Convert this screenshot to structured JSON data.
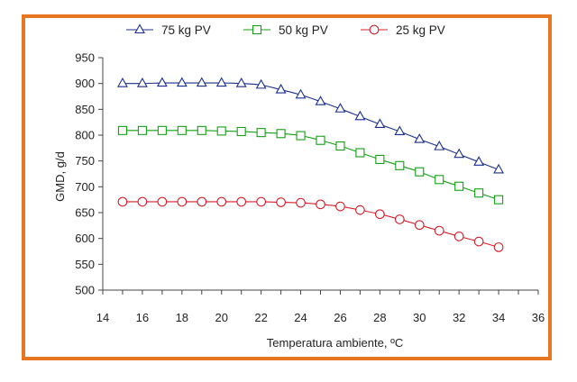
{
  "colors": {
    "frame": "#e87722",
    "series": [
      "#1a2f8f",
      "#14a014",
      "#d81e2a"
    ]
  },
  "chart_data": {
    "type": "line",
    "xlabel": "Temperatura ambiente, ºC",
    "ylabel": "GMD, g/d",
    "xlim": [
      14,
      36
    ],
    "ylim": [
      500,
      950
    ],
    "xticks": [
      14,
      16,
      18,
      20,
      22,
      24,
      26,
      28,
      30,
      32,
      34,
      36
    ],
    "yticks": [
      500,
      550,
      600,
      650,
      700,
      750,
      800,
      850,
      900,
      950
    ],
    "grid": false,
    "legend": "top",
    "x": [
      15,
      16,
      17,
      18,
      19,
      20,
      21,
      22,
      23,
      24,
      25,
      26,
      27,
      28,
      29,
      30,
      31,
      32,
      33,
      34
    ],
    "series": [
      {
        "name": "75 kg PV",
        "marker": "triangle",
        "color": "#1a2f8f",
        "values": [
          900,
          900,
          901,
          901,
          901,
          901,
          900,
          897,
          888,
          878,
          865,
          851,
          836,
          821,
          807,
          792,
          778,
          763,
          748,
          733
        ]
      },
      {
        "name": "50 kg PV",
        "marker": "square",
        "color": "#14a014",
        "values": [
          809,
          809,
          809,
          809,
          809,
          808,
          807,
          805,
          803,
          799,
          790,
          779,
          766,
          753,
          741,
          729,
          714,
          701,
          688,
          675
        ]
      },
      {
        "name": "25 kg PV",
        "marker": "circle",
        "color": "#d81e2a",
        "values": [
          671,
          671,
          671,
          671,
          671,
          671,
          671,
          671,
          670,
          669,
          666,
          662,
          655,
          647,
          637,
          626,
          615,
          604,
          594,
          583
        ]
      }
    ]
  }
}
